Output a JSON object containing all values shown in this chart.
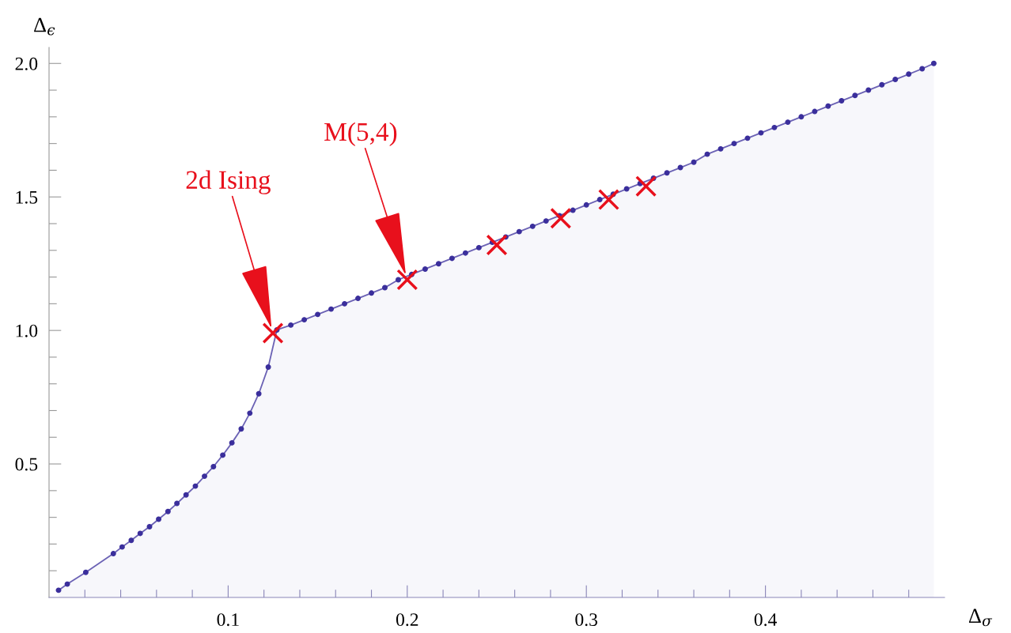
{
  "chart_data": {
    "type": "area",
    "xlabel": "Δ$_{σ}$",
    "ylabel": "Δ$_{ϵ}$",
    "xlim": [
      0,
      0.5
    ],
    "ylim": [
      0,
      2.06
    ],
    "xticks": [
      {
        "value": 0.02,
        "label": null
      },
      {
        "value": 0.04,
        "label": null
      },
      {
        "value": 0.06,
        "label": null
      },
      {
        "value": 0.08,
        "label": null
      },
      0.1,
      {
        "value": 0.12,
        "label": null
      },
      {
        "value": 0.14,
        "label": null
      },
      {
        "value": 0.16,
        "label": null
      },
      {
        "value": 0.18,
        "label": null
      },
      0.2,
      {
        "value": 0.22,
        "label": null
      },
      {
        "value": 0.24,
        "label": null
      },
      {
        "value": 0.26,
        "label": null
      },
      {
        "value": 0.28,
        "label": null
      },
      0.3,
      {
        "value": 0.32,
        "label": null
      },
      {
        "value": 0.34,
        "label": null
      },
      {
        "value": 0.36,
        "label": null
      },
      {
        "value": 0.38,
        "label": null
      },
      0.4,
      {
        "value": 0.42,
        "label": null
      },
      {
        "value": 0.44,
        "label": null
      },
      {
        "value": 0.46,
        "label": null
      },
      {
        "value": 0.48,
        "label": null
      }
    ],
    "yticks": [
      {
        "value": 0.1,
        "label": null
      },
      {
        "value": 0.2,
        "label": null
      },
      {
        "value": 0.3,
        "label": null
      },
      {
        "value": 0.4,
        "label": null
      },
      0.5,
      {
        "value": 0.6,
        "label": null
      },
      {
        "value": 0.7,
        "label": null
      },
      {
        "value": 0.8,
        "label": null
      },
      {
        "value": 0.9,
        "label": null
      },
      {
        "value": 1.0,
        "label": "1.0"
      },
      {
        "value": 1.1,
        "label": null
      },
      {
        "value": 1.2,
        "label": null
      },
      {
        "value": 1.3,
        "label": null
      },
      {
        "value": 1.4,
        "label": null
      },
      1.5,
      {
        "value": 1.6,
        "label": null
      },
      {
        "value": 1.7,
        "label": null
      },
      {
        "value": 1.8,
        "label": null
      },
      {
        "value": 1.9,
        "label": null
      },
      {
        "value": 2.0,
        "label": "2.0"
      }
    ],
    "grid": false,
    "legend": false,
    "series": [
      {
        "color": "#3b2f9c",
        "marker": "circle",
        "x": [
          0.0053,
          0.0102,
          0.0205,
          0.0359,
          0.0408,
          0.0459,
          0.0509,
          0.0561,
          0.0612,
          0.0664,
          0.0714,
          0.0765,
          0.0817,
          0.0868,
          0.0918,
          0.097,
          0.1021,
          0.1073,
          0.1121,
          0.1171,
          0.1224,
          0.1272,
          0.135,
          0.1425,
          0.15,
          0.1575,
          0.165,
          0.1725,
          0.18,
          0.1875,
          0.195,
          0.2025,
          0.21,
          0.2175,
          0.225,
          0.2325,
          0.24,
          0.2475,
          0.255,
          0.2625,
          0.27,
          0.2775,
          0.285,
          0.2925,
          0.3,
          0.3075,
          0.315,
          0.3225,
          0.33,
          0.3375,
          0.345,
          0.3525,
          0.36,
          0.3675,
          0.375,
          0.3825,
          0.39,
          0.3975,
          0.405,
          0.4125,
          0.42,
          0.4275,
          0.435,
          0.4425,
          0.45,
          0.4575,
          0.465,
          0.4725,
          0.48,
          0.4875,
          0.494
        ],
        "values": [
          0.027,
          0.05,
          0.094,
          0.164,
          0.189,
          0.214,
          0.24,
          0.265,
          0.293,
          0.322,
          0.352,
          0.384,
          0.417,
          0.454,
          0.49,
          0.533,
          0.579,
          0.631,
          0.69,
          0.763,
          0.863,
          1.002,
          1.02,
          1.04,
          1.06,
          1.08,
          1.1,
          1.12,
          1.14,
          1.16,
          1.19,
          1.21,
          1.23,
          1.25,
          1.27,
          1.29,
          1.31,
          1.33,
          1.35,
          1.37,
          1.39,
          1.41,
          1.43,
          1.45,
          1.47,
          1.49,
          1.51,
          1.53,
          1.55,
          1.57,
          1.59,
          1.61,
          1.63,
          1.66,
          1.68,
          1.7,
          1.72,
          1.74,
          1.76,
          1.78,
          1.8,
          1.82,
          1.84,
          1.86,
          1.88,
          1.9,
          1.92,
          1.94,
          1.96,
          1.98,
          2.0
        ]
      },
      {
        "type": "scatter",
        "color": "#e8101c",
        "marker": "cross",
        "x": [
          0.125,
          0.2,
          0.25,
          0.2857,
          0.3125,
          0.3333
        ],
        "values": [
          0.99,
          1.19,
          1.32,
          1.42,
          1.49,
          1.54
        ]
      }
    ],
    "annotations": [
      "2d Ising",
      "M(5,4)"
    ]
  }
}
